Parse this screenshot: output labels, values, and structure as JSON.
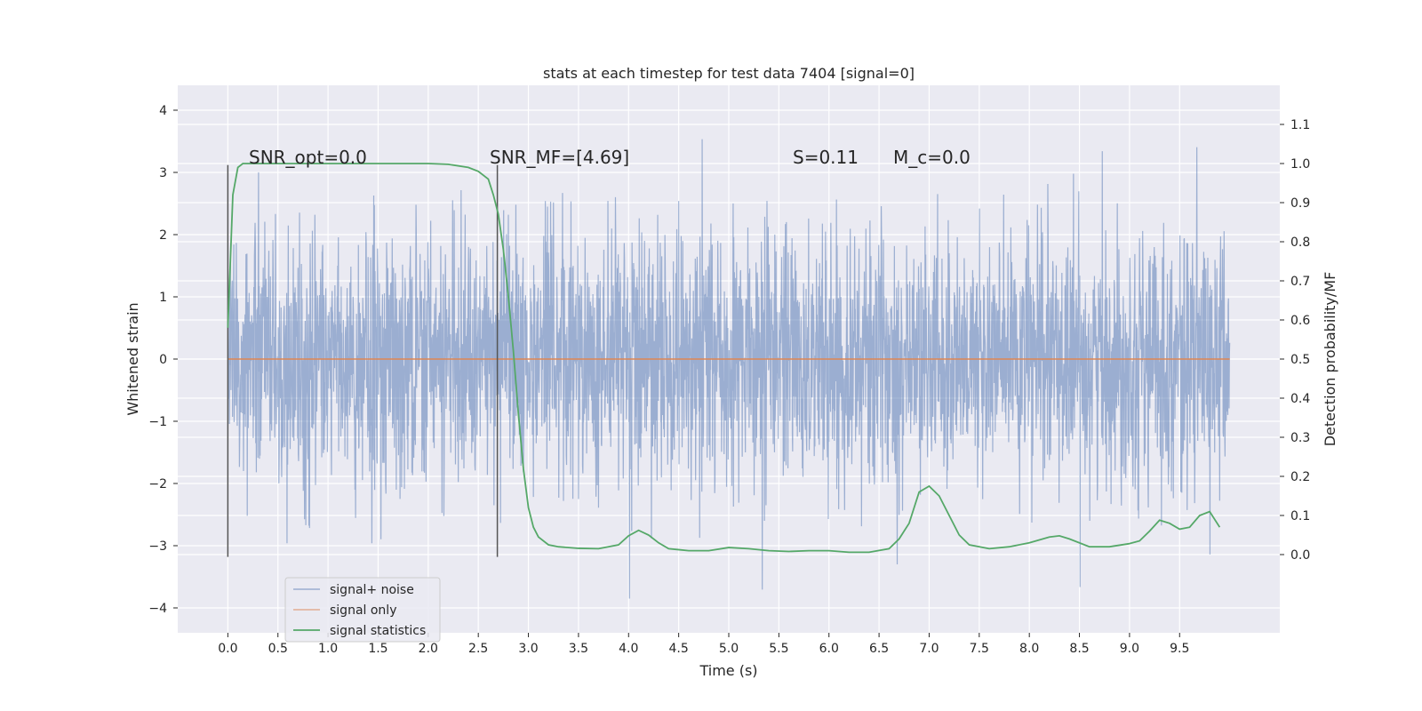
{
  "chart_data": {
    "type": "line",
    "title": "stats at each timestep for test data 7404 [signal=0]",
    "xlabel": "Time (s)",
    "ylabel": "Whitened strain",
    "y2label": "Detection probability/MF",
    "xlim": [
      -0.5,
      10.5
    ],
    "ylim": [
      -4.4,
      4.4
    ],
    "y2lim": [
      -0.2,
      1.2
    ],
    "x_ticks": [
      0.0,
      0.5,
      1.0,
      1.5,
      2.0,
      2.5,
      3.0,
      3.5,
      4.0,
      4.5,
      5.0,
      5.5,
      6.0,
      6.5,
      7.0,
      7.5,
      8.0,
      8.5,
      9.0,
      9.5
    ],
    "x_tick_labels": [
      "0.0",
      "0.5",
      "1.0",
      "1.5",
      "2.0",
      "2.5",
      "3.0",
      "3.5",
      "4.0",
      "4.5",
      "5.0",
      "5.5",
      "6.0",
      "6.5",
      "7.0",
      "7.5",
      "8.0",
      "8.5",
      "9.0",
      "9.5"
    ],
    "y_ticks": [
      -4,
      -3,
      -2,
      -1,
      0,
      1,
      2,
      3,
      4
    ],
    "y_tick_labels": [
      "−4",
      "−3",
      "−2",
      "−1",
      "0",
      "1",
      "2",
      "3",
      "4"
    ],
    "y2_ticks": [
      0.0,
      0.1,
      0.2,
      0.3,
      0.4,
      0.5,
      0.6,
      0.7,
      0.8,
      0.9,
      1.0,
      1.1
    ],
    "y2_tick_labels": [
      "0.0",
      "0.1",
      "0.2",
      "0.3",
      "0.4",
      "0.5",
      "0.6",
      "0.7",
      "0.8",
      "0.9",
      "1.0",
      "1.1"
    ],
    "grid": true,
    "legend_placement": "lower-left",
    "annotations": [
      "SNR_opt=0.0",
      "SNR_MF=[4.69]",
      "S=0.11",
      "M_c=0.0"
    ],
    "vertical_markers_x": [
      0.0,
      2.69
    ],
    "noise_range": [
      0.0,
      10.0
    ],
    "series": [
      {
        "name": "signal+ noise",
        "color": "#4c72b0",
        "style": "dense noise, mostly within ±1.8, peaks near ±4"
      },
      {
        "name": "signal only",
        "color": "#dd8452",
        "x": [
          0.0,
          10.0
        ],
        "y": [
          0.0,
          0.0
        ]
      },
      {
        "name": "signal statistics",
        "color": "#55a868",
        "axis": "right",
        "x": [
          0.0,
          0.05,
          0.1,
          0.15,
          0.2,
          0.4,
          0.8,
          1.2,
          1.6,
          2.0,
          2.2,
          2.4,
          2.5,
          2.6,
          2.65,
          2.7,
          2.75,
          2.8,
          2.85,
          2.9,
          2.95,
          3.0,
          3.05,
          3.1,
          3.2,
          3.3,
          3.5,
          3.7,
          3.9,
          4.0,
          4.1,
          4.2,
          4.3,
          4.4,
          4.6,
          4.8,
          5.0,
          5.2,
          5.4,
          5.6,
          5.8,
          6.0,
          6.2,
          6.4,
          6.6,
          6.7,
          6.8,
          6.9,
          7.0,
          7.1,
          7.2,
          7.3,
          7.4,
          7.6,
          7.8,
          8.0,
          8.2,
          8.3,
          8.4,
          8.6,
          8.8,
          9.0,
          9.1,
          9.2,
          9.3,
          9.4,
          9.5,
          9.6,
          9.7,
          9.8,
          9.9
        ],
        "y": [
          0.58,
          0.92,
          0.99,
          1.0,
          1.0,
          1.0,
          1.0,
          1.0,
          1.0,
          1.0,
          0.998,
          0.99,
          0.98,
          0.96,
          0.92,
          0.87,
          0.78,
          0.66,
          0.52,
          0.36,
          0.22,
          0.12,
          0.07,
          0.045,
          0.025,
          0.02,
          0.016,
          0.015,
          0.025,
          0.048,
          0.062,
          0.05,
          0.03,
          0.015,
          0.01,
          0.01,
          0.018,
          0.015,
          0.01,
          0.008,
          0.01,
          0.01,
          0.006,
          0.006,
          0.015,
          0.04,
          0.08,
          0.16,
          0.175,
          0.15,
          0.1,
          0.05,
          0.025,
          0.015,
          0.02,
          0.03,
          0.045,
          0.048,
          0.04,
          0.02,
          0.02,
          0.028,
          0.035,
          0.06,
          0.088,
          0.08,
          0.065,
          0.07,
          0.1,
          0.11,
          0.07
        ]
      }
    ]
  }
}
